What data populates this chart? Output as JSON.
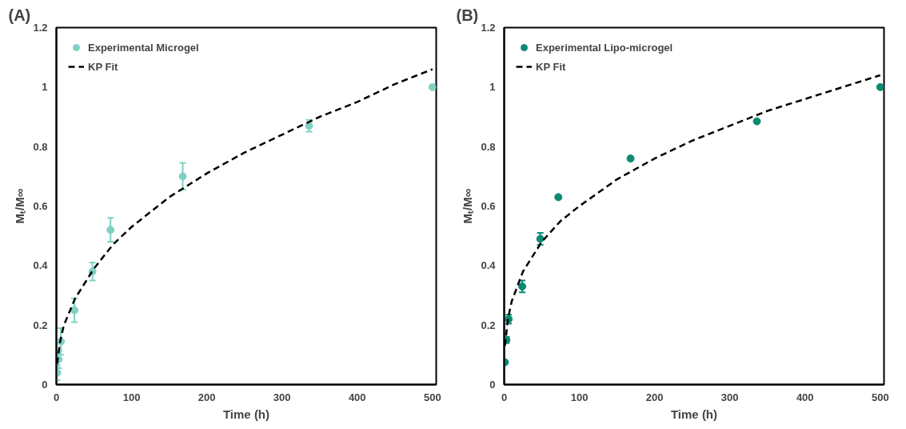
{
  "chart_data": [
    {
      "type": "scatter",
      "title": "(A)",
      "xlabel": "Time (h)",
      "ylabel": "Mₜ/M∞",
      "xlim": [
        0,
        505
      ],
      "xticks": [
        0,
        100,
        200,
        300,
        400,
        500
      ],
      "ylim": [
        0,
        1.2
      ],
      "yticks": [
        0,
        0.2,
        0.4,
        0.6,
        0.8,
        1,
        1.2
      ],
      "grid": false,
      "legend": "top left",
      "marker": "circle",
      "series": [
        {
          "name": "Experimental Microgel",
          "color": "#7fd1c3",
          "x": [
            1,
            3,
            6,
            24,
            48,
            72,
            168,
            336,
            500
          ],
          "values": [
            0.04,
            0.085,
            0.145,
            0.25,
            0.38,
            0.52,
            0.7,
            0.87,
            1.0
          ],
          "errors": [
            0.025,
            0.03,
            0.045,
            0.04,
            0.03,
            0.04,
            0.045,
            0.02,
            null
          ]
        },
        {
          "name": "KP Fit",
          "type": "line",
          "marker": "none",
          "line_style": "dashed",
          "color": "#000000",
          "x": [
            1,
            5,
            10,
            25,
            50,
            75,
            100,
            150,
            200,
            250,
            300,
            350,
            400,
            450,
            500
          ],
          "values": [
            0.07,
            0.145,
            0.2,
            0.29,
            0.39,
            0.47,
            0.53,
            0.63,
            0.71,
            0.78,
            0.84,
            0.9,
            0.95,
            1.01,
            1.06
          ]
        }
      ]
    },
    {
      "type": "scatter",
      "title": "(B)",
      "xlabel": "Time (h)",
      "ylabel": "Mₜ/M∞",
      "xlim": [
        0,
        505
      ],
      "xticks": [
        0,
        100,
        200,
        300,
        400,
        500
      ],
      "ylim": [
        0,
        1.2
      ],
      "yticks": [
        0,
        0.2,
        0.4,
        0.6,
        0.8,
        1,
        1.2
      ],
      "grid": false,
      "legend": "top left",
      "marker": "circle",
      "series": [
        {
          "name": "Experimental Lipo-microgel",
          "color": "#0b8a72",
          "x": [
            1,
            3,
            6,
            24,
            48,
            72,
            168,
            336,
            500
          ],
          "values": [
            0.075,
            0.15,
            0.22,
            0.33,
            0.49,
            0.63,
            0.76,
            0.885,
            1.0
          ],
          "errors": [
            null,
            0.01,
            0.015,
            0.02,
            0.02,
            null,
            null,
            null,
            null
          ]
        },
        {
          "name": "KP Fit",
          "type": "line",
          "marker": "none",
          "line_style": "dashed",
          "color": "#000000",
          "x": [
            1,
            5,
            10,
            25,
            50,
            75,
            100,
            150,
            200,
            250,
            300,
            350,
            400,
            450,
            500
          ],
          "values": [
            0.13,
            0.22,
            0.28,
            0.38,
            0.48,
            0.55,
            0.6,
            0.69,
            0.76,
            0.82,
            0.87,
            0.92,
            0.96,
            1.0,
            1.04
          ]
        }
      ]
    }
  ]
}
